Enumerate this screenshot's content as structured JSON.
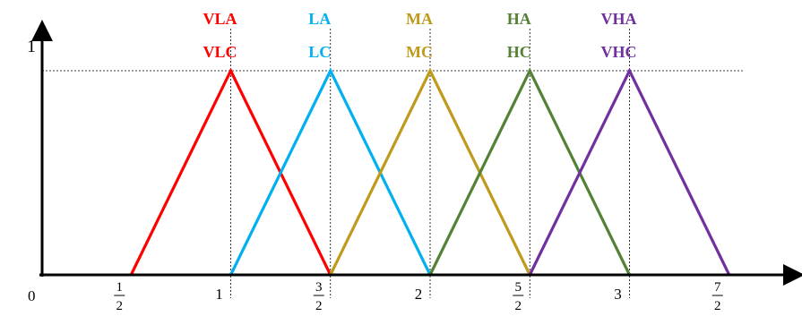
{
  "chart_data": {
    "type": "line",
    "title": "",
    "xlabel": "",
    "ylabel": "",
    "xlim": [
      0,
      3.75
    ],
    "ylim": [
      0,
      1.1
    ],
    "y_tick": "1",
    "origin_label": "0",
    "x_ticks": [
      {
        "value": 0.5,
        "num": "1",
        "den": "2"
      },
      {
        "value": 1,
        "text": "1"
      },
      {
        "value": 1.5,
        "num": "3",
        "den": "2"
      },
      {
        "value": 2,
        "text": "2"
      },
      {
        "value": 2.5,
        "num": "5",
        "den": "2"
      },
      {
        "value": 3,
        "text": "3"
      },
      {
        "value": 3.5,
        "num": "7",
        "den": "2"
      }
    ],
    "series": [
      {
        "top_label": "VLA",
        "bottom_label": "VLC",
        "color": "#ff0000",
        "points": [
          [
            0.5,
            0
          ],
          [
            1,
            1
          ],
          [
            1.5,
            0
          ]
        ]
      },
      {
        "top_label": "LA",
        "bottom_label": "LC",
        "color": "#00b0f0",
        "points": [
          [
            1,
            0
          ],
          [
            1.5,
            1
          ],
          [
            2,
            0
          ]
        ]
      },
      {
        "top_label": "MA",
        "bottom_label": "MC",
        "color": "#c09a1a",
        "points": [
          [
            1.5,
            0
          ],
          [
            2,
            1
          ],
          [
            2.5,
            0
          ]
        ]
      },
      {
        "top_label": "HA",
        "bottom_label": "HC",
        "color": "#538135",
        "points": [
          [
            2,
            0
          ],
          [
            2.5,
            1
          ],
          [
            3,
            0
          ]
        ]
      },
      {
        "top_label": "VHA",
        "bottom_label": "VHC",
        "color": "#7030a0",
        "points": [
          [
            2.5,
            0
          ],
          [
            3,
            1
          ],
          [
            3.5,
            0
          ]
        ]
      }
    ]
  }
}
